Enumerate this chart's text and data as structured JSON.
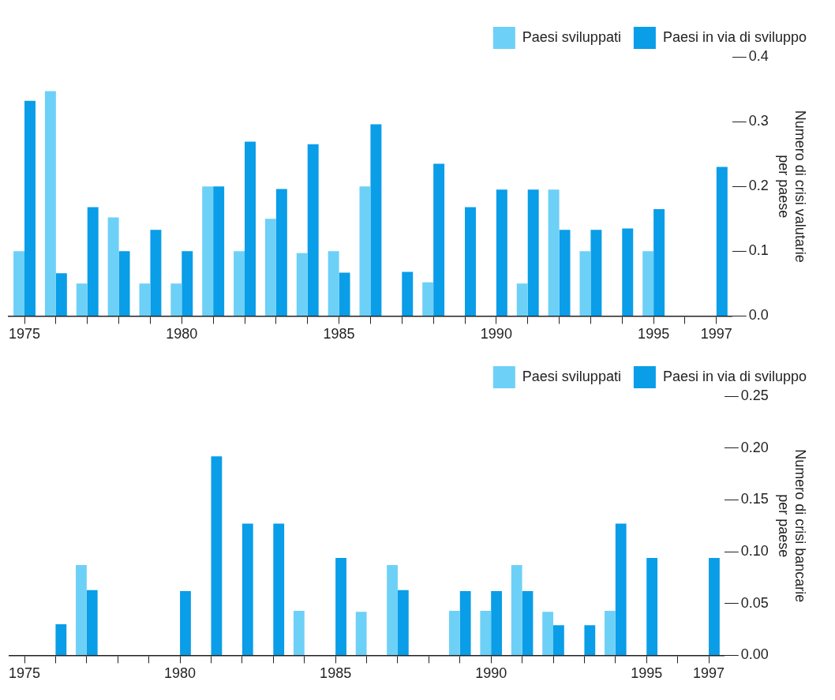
{
  "chart_data": [
    {
      "type": "bar",
      "ylabel": "Numero di crisi valutarie\nper paese",
      "categories": [
        "1975",
        null,
        null,
        null,
        null,
        "1980",
        null,
        null,
        null,
        null,
        "1985",
        null,
        null,
        null,
        null,
        "1990",
        null,
        null,
        null,
        null,
        "1995",
        null,
        "1997"
      ],
      "series": [
        {
          "name": "Paesi sviluppati",
          "color": "#6dd0f7",
          "values": [
            0.1,
            0.347,
            0.05,
            0.152,
            0.05,
            0.05,
            0.2,
            0.1,
            0.15,
            0.097,
            0.1,
            0.2,
            null,
            0.052,
            null,
            null,
            0.05,
            0.195,
            0.1,
            null,
            0.1,
            null,
            null
          ]
        },
        {
          "name": "Paesi in via di sviluppo",
          "color": "#0a9de8",
          "values": [
            0.332,
            0.066,
            0.168,
            0.1,
            0.133,
            0.1,
            0.2,
            0.269,
            0.196,
            0.265,
            0.067,
            0.296,
            0.068,
            0.235,
            0.168,
            0.195,
            0.195,
            0.133,
            0.133,
            0.135,
            0.165,
            null,
            0.23
          ]
        }
      ],
      "ylim": [
        0,
        0.4
      ],
      "yticks": [
        {
          "value": 0,
          "label": "0.0"
        },
        0.1,
        0.2,
        0.3,
        0.4
      ],
      "grid": false,
      "legend": "top right"
    },
    {
      "type": "bar",
      "ylabel": "Numero di crisi bancarie\nper paese",
      "categories": [
        "1975",
        null,
        null,
        null,
        null,
        "1980",
        null,
        null,
        null,
        null,
        "1985",
        null,
        null,
        null,
        null,
        "1990",
        null,
        null,
        null,
        null,
        "1995",
        null,
        "1997"
      ],
      "series": [
        {
          "name": "Paesi sviluppati",
          "color": "#6dd0f7",
          "values": [
            null,
            null,
            0.087,
            null,
            null,
            null,
            null,
            null,
            null,
            0.043,
            null,
            0.042,
            0.087,
            null,
            0.043,
            0.043,
            0.087,
            0.042,
            null,
            0.043,
            null,
            null,
            null
          ]
        },
        {
          "name": "Paesi in via di sviluppo",
          "color": "#0a9de8",
          "values": [
            null,
            0.03,
            0.063,
            null,
            null,
            0.062,
            0.192,
            0.127,
            0.127,
            null,
            0.094,
            null,
            0.063,
            null,
            0.062,
            0.062,
            0.062,
            0.029,
            0.029,
            0.127,
            0.094,
            null,
            0.094
          ]
        }
      ],
      "ylim": [
        0,
        0.25
      ],
      "yticks": [
        {
          "value": 0,
          "label": "0.00"
        },
        {
          "value": 0.05,
          "label": "0.05"
        },
        {
          "value": 0.1,
          "label": "0.10"
        },
        {
          "value": 0.15,
          "label": "0.15"
        },
        {
          "value": 0.2,
          "label": "0.20"
        },
        {
          "value": 0.25,
          "label": "0.25"
        }
      ],
      "grid": false,
      "legend": "top right"
    }
  ]
}
